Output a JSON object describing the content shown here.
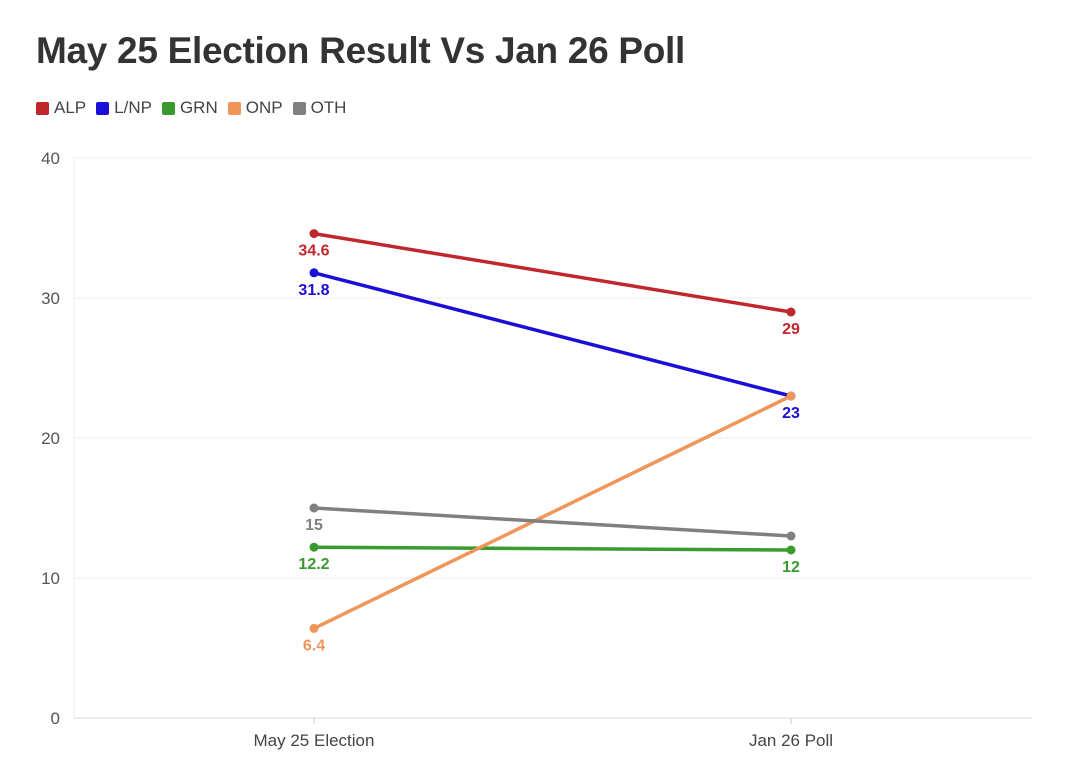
{
  "chart_data": {
    "type": "line",
    "title": "May 25 Election Result Vs Jan 26 Poll",
    "categories": [
      "May 25 Election",
      "Jan 26 Poll"
    ],
    "ylim": [
      0,
      40
    ],
    "yticks": [
      0,
      10,
      20,
      30,
      40
    ],
    "grid": true,
    "legend_position": "top-left",
    "series": [
      {
        "name": "ALP",
        "color": "#c0272d",
        "values": [
          34.6,
          29
        ],
        "labels": [
          "34.6",
          "29"
        ]
      },
      {
        "name": "L/NP",
        "color": "#1a0fd6",
        "values": [
          31.8,
          23
        ],
        "labels": [
          "31.8",
          "23"
        ]
      },
      {
        "name": "GRN",
        "color": "#3a9a2e",
        "values": [
          12.2,
          12
        ],
        "labels": [
          "12.2",
          "12"
        ]
      },
      {
        "name": "ONP",
        "color": "#f0965a",
        "values": [
          6.4,
          23
        ],
        "labels": [
          "6.4",
          ""
        ]
      },
      {
        "name": "OTH",
        "color": "#808080",
        "values": [
          15,
          13
        ],
        "labels": [
          "15",
          ""
        ]
      }
    ]
  }
}
